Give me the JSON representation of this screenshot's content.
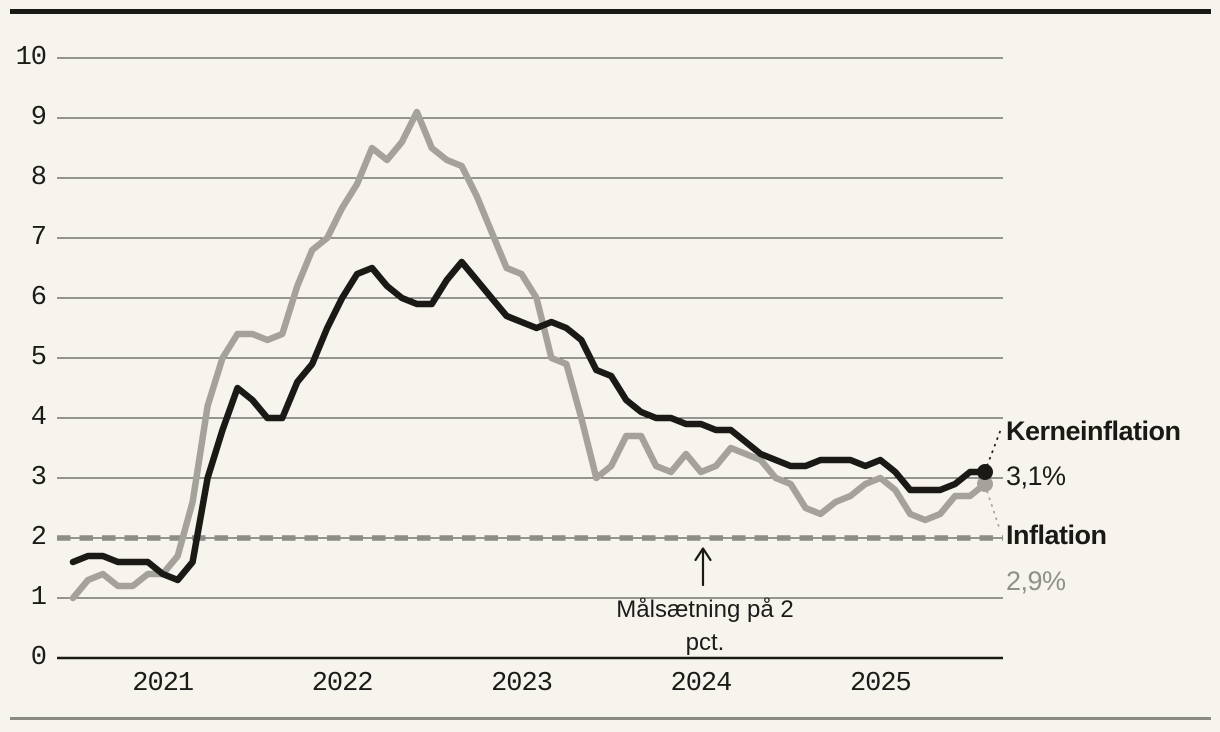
{
  "chart_data": {
    "type": "line",
    "title": "",
    "x_start": "2020-07",
    "x_frequency": "monthly",
    "x_tick_labels": [
      "2021",
      "2022",
      "2023",
      "2024",
      "2025"
    ],
    "y_ticks": [
      "0",
      "1",
      "2",
      "3",
      "4",
      "5",
      "6",
      "7",
      "8",
      "9",
      "10"
    ],
    "ylim": [
      0,
      10
    ],
    "grid": "horizontal",
    "legend_position": "right-end-labels",
    "series": [
      {
        "name": "Kerneinflation",
        "color": "#1a1916",
        "end_value_label": "3,1%",
        "values": [
          1.6,
          1.7,
          1.7,
          1.6,
          1.6,
          1.6,
          1.4,
          1.3,
          1.6,
          3.0,
          3.8,
          4.5,
          4.3,
          4.0,
          4.0,
          4.6,
          4.9,
          5.5,
          6.0,
          6.4,
          6.5,
          6.2,
          6.0,
          5.9,
          5.9,
          6.3,
          6.6,
          6.3,
          6.0,
          5.7,
          5.6,
          5.5,
          5.6,
          5.5,
          5.3,
          4.8,
          4.7,
          4.3,
          4.1,
          4.0,
          4.0,
          3.9,
          3.9,
          3.8,
          3.8,
          3.6,
          3.4,
          3.3,
          3.2,
          3.2,
          3.3,
          3.3,
          3.3,
          3.2,
          3.3,
          3.1,
          2.8,
          2.8,
          2.8,
          2.9,
          3.1,
          3.1
        ]
      },
      {
        "name": "Inflation",
        "color": "#a5a29c",
        "end_value_label": "2,9%",
        "values": [
          1.0,
          1.3,
          1.4,
          1.2,
          1.2,
          1.4,
          1.4,
          1.7,
          2.6,
          4.2,
          5.0,
          5.4,
          5.4,
          5.3,
          5.4,
          6.2,
          6.8,
          7.0,
          7.5,
          7.9,
          8.5,
          8.3,
          8.6,
          9.1,
          8.5,
          8.3,
          8.2,
          7.7,
          7.1,
          6.5,
          6.4,
          6.0,
          5.0,
          4.9,
          4.0,
          3.0,
          3.2,
          3.7,
          3.7,
          3.2,
          3.1,
          3.4,
          3.1,
          3.2,
          3.5,
          3.4,
          3.3,
          3.0,
          2.9,
          2.5,
          2.4,
          2.6,
          2.7,
          2.9,
          3.0,
          2.8,
          2.4,
          2.3,
          2.4,
          2.7,
          2.7,
          2.9
        ]
      }
    ],
    "target_line": {
      "value": 2,
      "style": "dashed",
      "color": "#8e8c86",
      "annotation_lines": [
        "Målsætning på 2",
        "pct."
      ]
    }
  }
}
